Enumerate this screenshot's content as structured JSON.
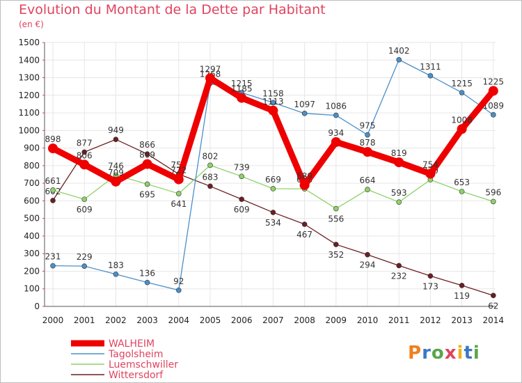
{
  "title": "Evolution du Montant de la Dette par Habitant",
  "unit": "(en €)",
  "logo": "Proxiti",
  "chart_data": {
    "type": "line",
    "x": [
      "2000",
      "2001",
      "2002",
      "2003",
      "2004",
      "2005",
      "2006",
      "2007",
      "2008",
      "2009",
      "2010",
      "2011",
      "2012",
      "2013",
      "2014"
    ],
    "ylim": [
      0,
      1500
    ],
    "yticks": [
      0,
      100,
      200,
      300,
      400,
      500,
      600,
      700,
      800,
      900,
      1000,
      1100,
      1200,
      1300,
      1400,
      1500
    ],
    "grid": true,
    "legend_position": "bottom-left",
    "series": [
      {
        "name": "Wittersdorf",
        "color": "#6b1f24",
        "values": [
          602,
          877,
          949,
          866,
          752,
          683,
          609,
          534,
          467,
          352,
          294,
          232,
          173,
          119,
          62
        ]
      },
      {
        "name": "Luemschwiller",
        "color": "#8fd16a",
        "values": [
          661,
          609,
          746,
          695,
          641,
          802,
          739,
          669,
          668,
          556,
          664,
          593,
          720,
          653,
          596
        ]
      },
      {
        "name": "Tagolsheim",
        "color": "#4a8fc8",
        "values": [
          231,
          229,
          183,
          136,
          92,
          1268,
          1215,
          1158,
          1097,
          1086,
          975,
          1402,
          1311,
          1215,
          1089
        ]
      },
      {
        "name": "WALHEIM",
        "color": "#ee0000",
        "values": [
          898,
          806,
          709,
          809,
          722,
          1297,
          1185,
          1113,
          689,
          934,
          878,
          819,
          754,
          1008,
          1225
        ]
      }
    ]
  }
}
